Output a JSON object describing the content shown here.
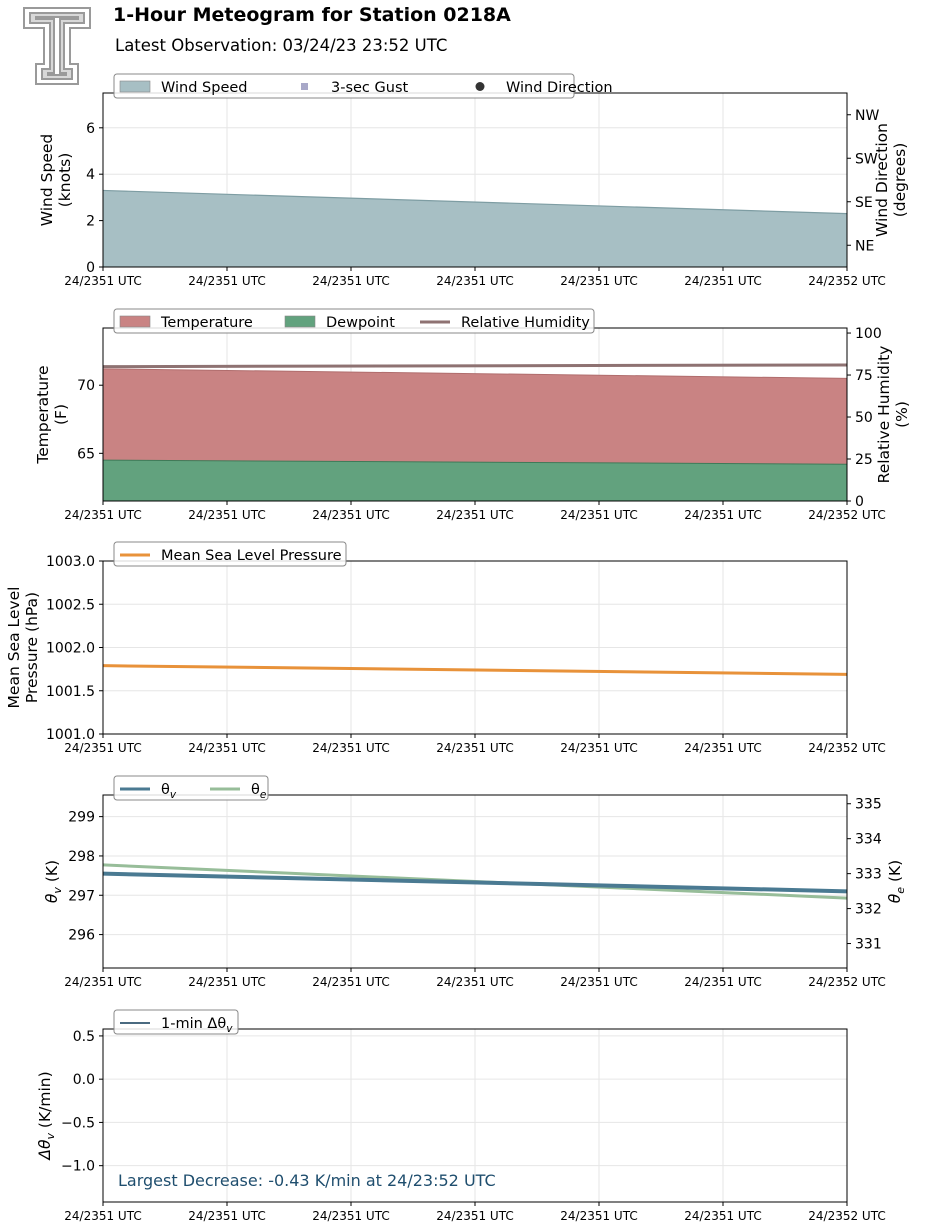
{
  "header": {
    "title": "1-Hour Meteogram for Station 0218A",
    "subtitle": "Latest Observation: 03/24/23 23:52 UTC"
  },
  "colors": {
    "wind_fill": "#a7bfc4",
    "wind_edge": "#7e9da3",
    "gust": "#a8a8c8",
    "direction": "#333333",
    "temp_fill": "#c98383",
    "dew_fill": "#62a27e",
    "rh_line": "#8e7272",
    "pressure": "#e8923a",
    "theta_v": "#4a7a92",
    "theta_e": "#97bd99",
    "dtheta": "#4a6a80",
    "annotation": "#1f4e6e"
  },
  "chart_data": [
    {
      "id": "wind",
      "type": "area",
      "x_tick_labels": [
        "24/2351 UTC",
        "24/2351 UTC",
        "24/2351 UTC",
        "24/2351 UTC",
        "24/2351 UTC",
        "24/2351 UTC",
        "24/2352 UTC"
      ],
      "ylabel": "Wind Speed\n(knots)",
      "ylim": [
        0,
        7.5
      ],
      "yticks": [
        0,
        2,
        4,
        6
      ],
      "y2label": "Wind Direction\n(degrees)",
      "y2lim": [
        0,
        360
      ],
      "y2ticks": [
        {
          "value": 45,
          "label": "NE"
        },
        {
          "value": 135,
          "label": "SE"
        },
        {
          "value": 225,
          "label": "SW"
        },
        {
          "value": 315,
          "label": "NW"
        }
      ],
      "legend": [
        {
          "name": "Wind Speed",
          "kind": "patch",
          "color": "#a7bfc4"
        },
        {
          "name": "3-sec Gust",
          "kind": "square",
          "color": "#a8a8c8"
        },
        {
          "name": "Wind Direction",
          "kind": "dot",
          "color": "#333333"
        }
      ],
      "legend_position": "top-left",
      "grid": true,
      "x": [
        0,
        1
      ],
      "series": [
        {
          "name": "Wind Speed",
          "values": [
            3.3,
            2.3
          ]
        }
      ]
    },
    {
      "id": "temp",
      "type": "area",
      "x_tick_labels": [
        "24/2351 UTC",
        "24/2351 UTC",
        "24/2351 UTC",
        "24/2351 UTC",
        "24/2351 UTC",
        "24/2351 UTC",
        "24/2352 UTC"
      ],
      "ylabel": "Temperature\n(F)",
      "ylim": [
        61.5,
        74.2
      ],
      "yticks": [
        65,
        70
      ],
      "y2label": "Relative Humidity\n(%)",
      "y2lim": [
        0,
        103
      ],
      "y2ticks": [
        {
          "value": 0,
          "label": "0"
        },
        {
          "value": 25,
          "label": "25"
        },
        {
          "value": 50,
          "label": "50"
        },
        {
          "value": 75,
          "label": "75"
        },
        {
          "value": 100,
          "label": "100"
        }
      ],
      "legend": [
        {
          "name": "Temperature",
          "kind": "patch",
          "color": "#c98383"
        },
        {
          "name": "Dewpoint",
          "kind": "patch",
          "color": "#62a27e"
        },
        {
          "name": "Relative Humidity",
          "kind": "line",
          "color": "#8e7272"
        }
      ],
      "legend_position": "top-left",
      "grid": true,
      "x": [
        0,
        1
      ],
      "series": [
        {
          "name": "Temperature",
          "values": [
            71.2,
            70.5
          ]
        },
        {
          "name": "Dewpoint",
          "values": [
            64.5,
            64.2
          ]
        },
        {
          "name": "Relative Humidity",
          "axis": "y2",
          "values": [
            80,
            81
          ]
        }
      ]
    },
    {
      "id": "pressure",
      "type": "line",
      "x_tick_labels": [
        "24/2351 UTC",
        "24/2351 UTC",
        "24/2351 UTC",
        "24/2351 UTC",
        "24/2351 UTC",
        "24/2351 UTC",
        "24/2352 UTC"
      ],
      "ylabel": "Mean Sea Level\nPressure (hPa)",
      "ylim": [
        1001.0,
        1003.0
      ],
      "yticks": [
        1001.0,
        1001.5,
        1002.0,
        1002.5,
        1003.0
      ],
      "legend": [
        {
          "name": "Mean Sea Level Pressure",
          "kind": "line",
          "color": "#e8923a"
        }
      ],
      "legend_position": "top-left",
      "grid": true,
      "x": [
        0,
        1
      ],
      "series": [
        {
          "name": "Mean Sea Level Pressure",
          "values": [
            1001.79,
            1001.69
          ]
        }
      ]
    },
    {
      "id": "theta",
      "type": "line",
      "x_tick_labels": [
        "24/2351 UTC",
        "24/2351 UTC",
        "24/2351 UTC",
        "24/2351 UTC",
        "24/2351 UTC",
        "24/2351 UTC",
        "24/2352 UTC"
      ],
      "ylabel_main": "θ",
      "ylabel_sub": "v",
      "ylabel_unit": " (K)",
      "ylim": [
        295.15,
        299.55
      ],
      "yticks": [
        296,
        297,
        298,
        299
      ],
      "y2label_main": "θ",
      "y2label_sub": "e",
      "y2label_unit": " (K)",
      "y2lim": [
        330.3,
        335.25
      ],
      "y2ticks": [
        {
          "value": 331,
          "label": "331"
        },
        {
          "value": 332,
          "label": "332"
        },
        {
          "value": 333,
          "label": "333"
        },
        {
          "value": 334,
          "label": "334"
        },
        {
          "value": 335,
          "label": "335"
        }
      ],
      "legend": [
        {
          "name": "θ",
          "sub": "v",
          "kind": "line",
          "color": "#4a7a92"
        },
        {
          "name": "θ",
          "sub": "e",
          "kind": "line",
          "color": "#97bd99"
        }
      ],
      "legend_position": "top-left",
      "grid": true,
      "x": [
        0,
        1
      ],
      "series": [
        {
          "name": "θv",
          "values": [
            297.55,
            297.1
          ]
        },
        {
          "name": "θe",
          "axis": "y2",
          "values": [
            333.25,
            332.3
          ]
        }
      ]
    },
    {
      "id": "dtheta",
      "type": "line",
      "x_tick_labels": [
        "24/2351 UTC",
        "24/2351 UTC",
        "24/2351 UTC",
        "24/2351 UTC",
        "24/2351 UTC",
        "24/2351 UTC",
        "24/2352 UTC"
      ],
      "ylabel_main": "Δθ",
      "ylabel_sub": "v",
      "ylabel_unit": " (K/min)",
      "ylim": [
        -1.42,
        0.58
      ],
      "yticks": [
        {
          "value": 0.5,
          "label": "0.5"
        },
        {
          "value": 0.0,
          "label": "0.0"
        },
        {
          "value": -0.5,
          "label": "−0.5"
        },
        {
          "value": -1.0,
          "label": "−1.0"
        }
      ],
      "legend": [
        {
          "name": "1-min Δθ",
          "sub": "v",
          "kind": "line",
          "color": "#4a6a80"
        }
      ],
      "legend_position": "top-left",
      "grid": true,
      "annotation": "Largest Decrease: -0.43 K/min at 24/23:52 UTC"
    }
  ]
}
